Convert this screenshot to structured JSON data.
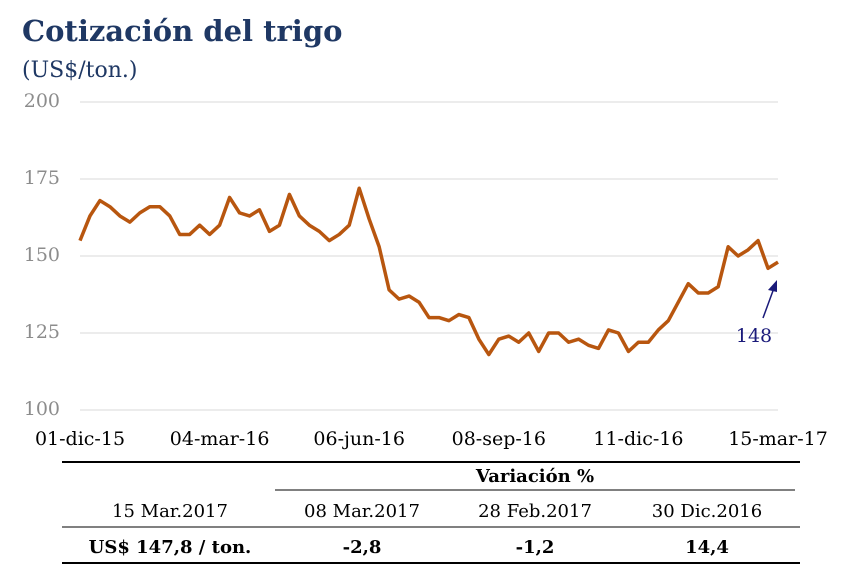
{
  "chart_data": {
    "type": "line",
    "title": "Cotización del trigo",
    "subtitle": "(US$/ton.)",
    "categories": [
      "01-dic-15",
      null,
      null,
      null,
      null,
      null,
      null,
      null,
      null,
      null,
      null,
      null,
      null,
      null,
      "04-mar-16",
      null,
      null,
      null,
      null,
      null,
      null,
      null,
      null,
      null,
      null,
      null,
      null,
      null,
      "06-jun-16",
      null,
      null,
      null,
      null,
      null,
      null,
      null,
      null,
      null,
      null,
      null,
      null,
      null,
      "08-sep-16",
      null,
      null,
      null,
      null,
      null,
      null,
      null,
      null,
      null,
      null,
      null,
      null,
      null,
      "11-dic-16",
      null,
      null,
      null,
      null,
      null,
      null,
      null,
      null,
      null,
      null,
      null,
      null,
      null,
      "15-mar-17"
    ],
    "series": [
      {
        "name": "Trigo",
        "color": "#b8560f",
        "values": [
          155,
          163,
          168,
          166,
          163,
          161,
          164,
          166,
          166,
          163,
          157,
          157,
          160,
          157,
          160,
          169,
          164,
          163,
          165,
          158,
          160,
          170,
          163,
          160,
          158,
          155,
          157,
          160,
          172,
          162,
          153,
          139,
          136,
          137,
          135,
          130,
          130,
          129,
          131,
          130,
          123,
          118,
          123,
          124,
          122,
          125,
          119,
          125,
          125,
          122,
          123,
          121,
          120,
          126,
          125,
          119,
          122,
          122,
          126,
          129,
          135,
          141,
          138,
          138,
          140,
          153,
          150,
          152,
          155,
          146,
          148
        ]
      }
    ],
    "ylim": [
      100,
      200
    ],
    "yticks": [
      100,
      125,
      150,
      175,
      200
    ],
    "grid": true,
    "annotations": [
      {
        "text": "148",
        "color": "#1a1a7a"
      }
    ]
  },
  "table": {
    "group_header": "Variación %",
    "columns": [
      "15 Mar.2017",
      "08 Mar.2017",
      "28 Feb.2017",
      "30 Dic.2016"
    ],
    "rows": [
      [
        "US$ 147,8 / ton.",
        "-2,8",
        "-1,2",
        "14,4"
      ]
    ]
  }
}
